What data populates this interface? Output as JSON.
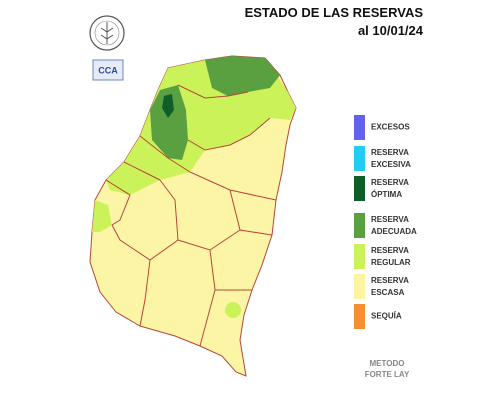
{
  "header": {
    "title": "ESTADO DE LAS RESERVAS",
    "date": "al 10/01/24"
  },
  "logos": {
    "cca": "CCA"
  },
  "legend": [
    {
      "lines": [
        "EXCESOS"
      ],
      "color": "#6262ee"
    },
    {
      "lines": [
        "RESERVA",
        "EXCESIVA"
      ],
      "color": "#22ccf2"
    },
    {
      "lines": [
        "RESERVA",
        "ÓPTIMA"
      ],
      "color": "#0e5e2a"
    },
    {
      "lines": [
        "RESERVA",
        "ADECUADA"
      ],
      "color": "#5aa040"
    },
    {
      "lines": [
        "RESERVA",
        "REGULAR"
      ],
      "color": "#ccf25a"
    },
    {
      "lines": [
        "RESERVA",
        "ESCASA"
      ],
      "color": "#fdf3a0"
    },
    {
      "lines": [
        "SEQUÍA"
      ],
      "color": "#f39030"
    }
  ],
  "footer": {
    "method": [
      "METODO",
      "FORTE LAY"
    ]
  }
}
